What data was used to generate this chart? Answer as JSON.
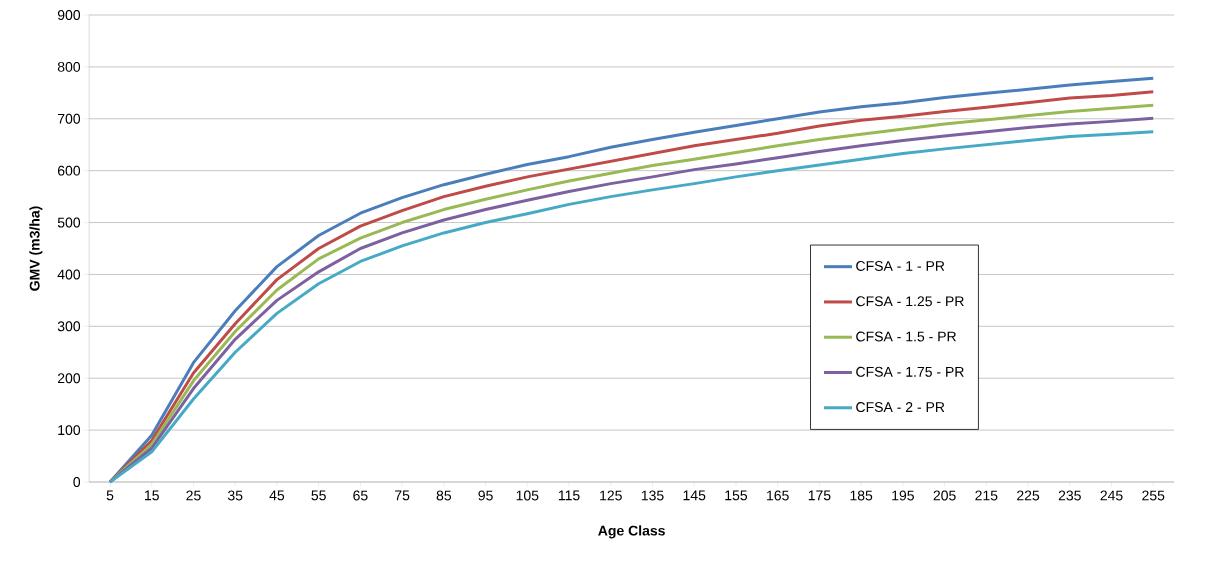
{
  "chart_data": {
    "type": "line",
    "xlabel": "Age Class",
    "ylabel": "GMV (m3/ha)",
    "categories": [
      "5",
      "15",
      "25",
      "35",
      "45",
      "55",
      "65",
      "75",
      "85",
      "95",
      "105",
      "115",
      "125",
      "135",
      "145",
      "155",
      "165",
      "175",
      "185",
      "195",
      "205",
      "215",
      "225",
      "235",
      "245",
      "255"
    ],
    "ylim": [
      0,
      900
    ],
    "yticks": [
      0,
      100,
      200,
      300,
      400,
      500,
      600,
      700,
      800,
      900
    ],
    "grid": "y",
    "legend": "right",
    "marker": "none",
    "line_style": "solid",
    "series": [
      {
        "name": "CFSA - 1 - PR",
        "color": "#4a7ebb",
        "values": [
          0,
          90,
          230,
          330,
          415,
          475,
          518,
          548,
          573,
          593,
          612,
          627,
          645,
          660,
          674,
          687,
          700,
          713,
          723,
          731,
          741,
          749,
          757,
          765,
          772,
          778
        ]
      },
      {
        "name": "CFSA - 1.25 - PR",
        "color": "#be4b48",
        "values": [
          0,
          80,
          210,
          305,
          390,
          450,
          493,
          523,
          550,
          570,
          588,
          603,
          618,
          633,
          648,
          660,
          672,
          686,
          697,
          705,
          714,
          722,
          731,
          740,
          745,
          752
        ]
      },
      {
        "name": "CFSA - 1.5 - PR",
        "color": "#98b954",
        "values": [
          0,
          72,
          195,
          290,
          370,
          430,
          470,
          500,
          525,
          545,
          563,
          580,
          595,
          610,
          622,
          635,
          648,
          660,
          670,
          680,
          690,
          698,
          706,
          714,
          720,
          726
        ]
      },
      {
        "name": "CFSA - 1.75 - PR",
        "color": "#7d60a0",
        "values": [
          0,
          65,
          180,
          275,
          350,
          405,
          450,
          480,
          505,
          525,
          543,
          560,
          575,
          588,
          602,
          613,
          625,
          637,
          648,
          658,
          667,
          675,
          683,
          690,
          695,
          701
        ]
      },
      {
        "name": "CFSA - 2 - PR",
        "color": "#46aac5",
        "values": [
          0,
          58,
          160,
          250,
          325,
          382,
          425,
          455,
          480,
          500,
          517,
          535,
          550,
          563,
          575,
          588,
          600,
          611,
          622,
          633,
          642,
          650,
          658,
          666,
          670,
          675
        ]
      }
    ]
  }
}
